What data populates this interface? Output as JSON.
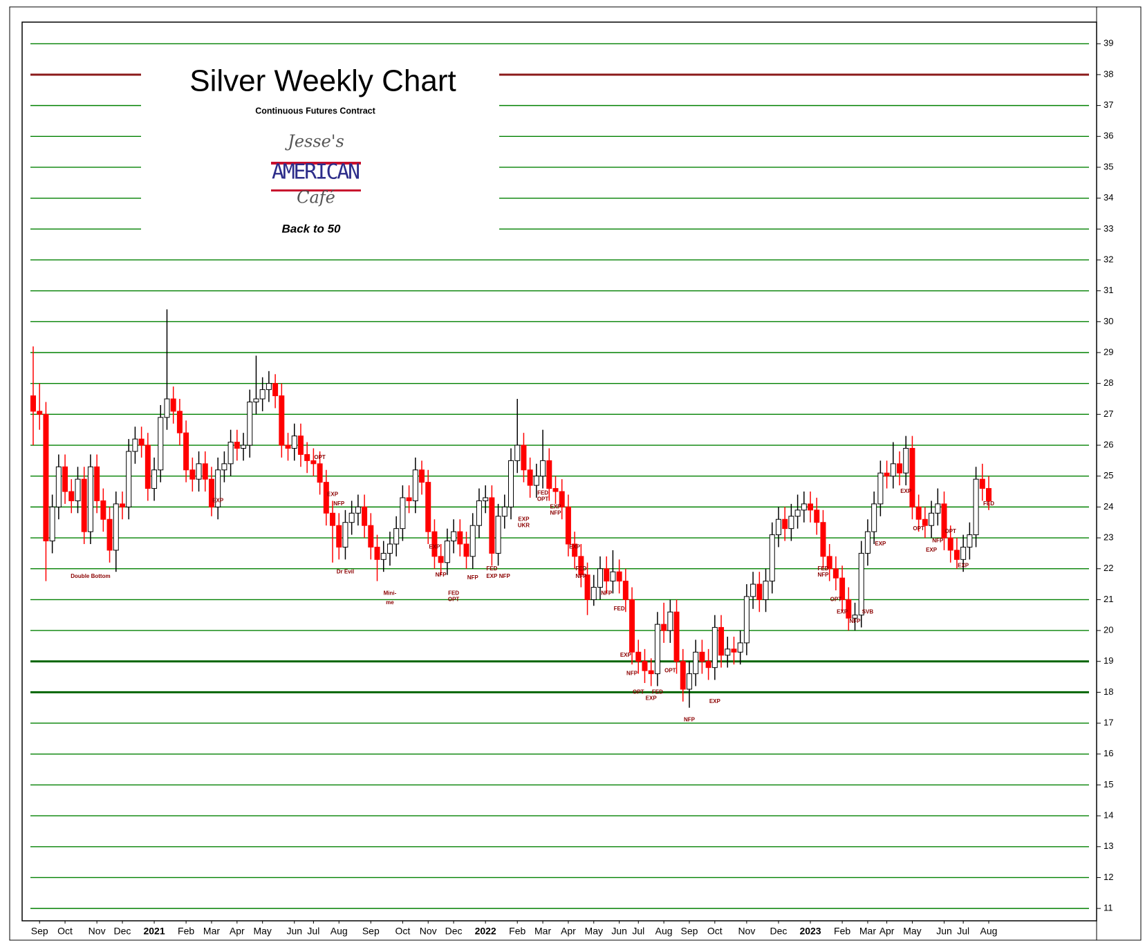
{
  "chart_data": {
    "type": "candlestick",
    "title": "Silver Weekly Chart",
    "subtitle": "Continuous Futures Contract",
    "logo": {
      "top": "Jesse's",
      "middle": "AMERICAN",
      "bottom": "Café"
    },
    "tagline": "Back to 50",
    "up_color": "#ffffff",
    "down_color": "#ff0000",
    "grid": true,
    "grid_color": "#008000",
    "ylim": [
      10.6,
      39.7
    ],
    "yticks": [
      11,
      12,
      13,
      14,
      15,
      16,
      17,
      18,
      19,
      20,
      21,
      22,
      23,
      24,
      25,
      26,
      27,
      28,
      29,
      30,
      31,
      32,
      33,
      34,
      35,
      36,
      37,
      38,
      39
    ],
    "reference_lines": [
      {
        "value": 38,
        "color": "#8b1a1a"
      },
      {
        "value": 19,
        "color": "#006400"
      },
      {
        "value": 18,
        "color": "#006400"
      }
    ],
    "categories": [
      null,
      "Sep",
      null,
      null,
      null,
      "Oct",
      null,
      null,
      null,
      null,
      "Nov",
      null,
      null,
      null,
      "Dec",
      null,
      null,
      null,
      null,
      "2021",
      null,
      null,
      null,
      null,
      "Feb",
      null,
      null,
      null,
      "Mar",
      null,
      null,
      null,
      "Apr",
      null,
      null,
      null,
      "May",
      null,
      null,
      null,
      null,
      "Jun",
      null,
      null,
      "Jul",
      null,
      null,
      null,
      "Aug",
      null,
      null,
      null,
      null,
      "Sep",
      null,
      null,
      null,
      null,
      "Oct",
      null,
      null,
      null,
      "Nov",
      null,
      null,
      null,
      "Dec",
      null,
      null,
      null,
      null,
      "2022",
      null,
      null,
      null,
      null,
      "Feb",
      null,
      null,
      null,
      "Mar",
      null,
      null,
      null,
      "Apr",
      null,
      null,
      null,
      "May",
      null,
      null,
      null,
      "Jun",
      null,
      null,
      "Jul",
      null,
      null,
      null,
      "Aug",
      null,
      null,
      null,
      "Sep",
      null,
      null,
      null,
      "Oct",
      null,
      null,
      null,
      null,
      "Nov",
      null,
      null,
      null,
      null,
      "Dec",
      null,
      null,
      null,
      null,
      "2023",
      null,
      null,
      null,
      null,
      "Feb",
      null,
      null,
      null,
      "Mar",
      null,
      null,
      "Apr",
      null,
      null,
      null,
      "May",
      null,
      null,
      null,
      null,
      "Jun",
      null,
      null,
      "Jul",
      null,
      null,
      null,
      "Aug"
    ],
    "ohlc": [
      [
        27.6,
        29.2,
        26.0,
        27.1
      ],
      [
        27.1,
        28.0,
        26.5,
        27.0
      ],
      [
        27.0,
        27.4,
        21.6,
        22.9
      ],
      [
        22.9,
        24.4,
        22.5,
        24.0
      ],
      [
        24.0,
        25.7,
        23.6,
        25.3
      ],
      [
        25.3,
        25.7,
        24.1,
        24.5
      ],
      [
        24.5,
        24.9,
        23.8,
        24.2
      ],
      [
        24.2,
        25.3,
        23.8,
        24.9
      ],
      [
        24.9,
        25.3,
        22.8,
        23.2
      ],
      [
        23.2,
        25.7,
        22.8,
        25.3
      ],
      [
        25.3,
        25.7,
        23.8,
        24.2
      ],
      [
        24.2,
        24.6,
        23.2,
        23.6
      ],
      [
        23.6,
        24.0,
        22.2,
        22.6
      ],
      [
        22.6,
        24.5,
        21.9,
        24.1
      ],
      [
        24.1,
        24.5,
        23.6,
        24.0
      ],
      [
        24.0,
        26.2,
        23.6,
        25.8
      ],
      [
        25.8,
        26.6,
        25.4,
        26.2
      ],
      [
        26.2,
        26.6,
        25.6,
        26.0
      ],
      [
        26.0,
        26.4,
        24.2,
        24.6
      ],
      [
        24.6,
        25.6,
        24.2,
        25.2
      ],
      [
        25.2,
        27.3,
        24.8,
        26.9
      ],
      [
        26.9,
        30.4,
        26.5,
        27.5
      ],
      [
        27.5,
        27.9,
        26.7,
        27.1
      ],
      [
        27.1,
        27.5,
        26.0,
        26.4
      ],
      [
        26.4,
        26.8,
        24.8,
        25.2
      ],
      [
        25.2,
        25.6,
        24.5,
        24.9
      ],
      [
        24.9,
        25.8,
        24.5,
        25.4
      ],
      [
        25.4,
        25.8,
        24.5,
        24.9
      ],
      [
        24.9,
        25.3,
        23.7,
        24.0
      ],
      [
        24.0,
        25.6,
        23.6,
        25.2
      ],
      [
        25.2,
        25.8,
        24.8,
        25.4
      ],
      [
        25.4,
        26.5,
        25.0,
        26.1
      ],
      [
        26.1,
        26.5,
        25.5,
        25.9
      ],
      [
        25.9,
        26.4,
        25.5,
        26.0
      ],
      [
        26.0,
        27.8,
        25.6,
        27.4
      ],
      [
        27.4,
        28.9,
        27.0,
        27.5
      ],
      [
        27.5,
        28.2,
        27.1,
        27.8
      ],
      [
        27.8,
        28.4,
        27.4,
        28.0
      ],
      [
        28.0,
        28.3,
        27.2,
        27.6
      ],
      [
        27.6,
        28.0,
        25.6,
        26.0
      ],
      [
        26.0,
        26.4,
        25.5,
        25.9
      ],
      [
        25.9,
        26.7,
        25.5,
        26.3
      ],
      [
        26.3,
        26.7,
        25.3,
        25.7
      ],
      [
        25.7,
        26.1,
        25.1,
        25.5
      ],
      [
        25.5,
        25.9,
        25.0,
        25.4
      ],
      [
        25.4,
        25.8,
        24.4,
        24.8
      ],
      [
        24.8,
        25.2,
        23.4,
        23.8
      ],
      [
        23.8,
        24.2,
        22.2,
        23.4
      ],
      [
        23.4,
        23.8,
        22.3,
        22.7
      ],
      [
        22.7,
        23.9,
        22.3,
        23.5
      ],
      [
        23.5,
        24.2,
        23.1,
        23.8
      ],
      [
        23.8,
        24.4,
        23.4,
        24.0
      ],
      [
        24.0,
        24.4,
        23.0,
        23.4
      ],
      [
        23.4,
        23.8,
        22.3,
        22.7
      ],
      [
        22.7,
        23.1,
        21.6,
        22.3
      ],
      [
        22.3,
        22.9,
        21.9,
        22.5
      ],
      [
        22.5,
        23.2,
        22.1,
        22.8
      ],
      [
        22.8,
        23.7,
        22.4,
        23.3
      ],
      [
        23.3,
        24.7,
        22.9,
        24.3
      ],
      [
        24.3,
        24.7,
        23.8,
        24.2
      ],
      [
        24.2,
        25.6,
        23.8,
        25.2
      ],
      [
        25.2,
        25.5,
        24.4,
        24.8
      ],
      [
        24.8,
        25.2,
        22.8,
        23.2
      ],
      [
        23.2,
        23.6,
        22.0,
        22.4
      ],
      [
        22.4,
        22.8,
        21.8,
        22.2
      ],
      [
        22.2,
        23.3,
        21.8,
        22.9
      ],
      [
        22.9,
        23.6,
        22.5,
        23.2
      ],
      [
        23.2,
        23.6,
        22.4,
        22.8
      ],
      [
        22.8,
        23.2,
        22.0,
        22.4
      ],
      [
        22.4,
        23.8,
        22.0,
        23.4
      ],
      [
        23.4,
        24.6,
        23.0,
        24.2
      ],
      [
        24.2,
        24.7,
        23.8,
        24.3
      ],
      [
        24.3,
        24.7,
        22.1,
        22.5
      ],
      [
        22.5,
        24.1,
        22.1,
        23.7
      ],
      [
        23.7,
        24.4,
        23.3,
        24.0
      ],
      [
        24.0,
        25.9,
        23.6,
        25.5
      ],
      [
        25.5,
        27.5,
        25.1,
        26.0
      ],
      [
        26.0,
        26.4,
        24.8,
        25.2
      ],
      [
        25.2,
        25.6,
        24.3,
        24.7
      ],
      [
        24.7,
        25.4,
        24.3,
        25.0
      ],
      [
        25.0,
        26.5,
        24.6,
        25.5
      ],
      [
        25.5,
        25.9,
        24.2,
        24.6
      ],
      [
        24.6,
        25.0,
        24.1,
        24.5
      ],
      [
        24.5,
        24.9,
        23.6,
        24.0
      ],
      [
        24.0,
        24.4,
        22.4,
        22.8
      ],
      [
        22.8,
        23.2,
        22.0,
        22.4
      ],
      [
        22.4,
        22.8,
        21.4,
        21.8
      ],
      [
        21.8,
        22.2,
        20.5,
        21.0
      ],
      [
        21.0,
        21.8,
        20.8,
        21.4
      ],
      [
        21.4,
        22.4,
        21.0,
        22.0
      ],
      [
        22.0,
        22.4,
        21.2,
        21.6
      ],
      [
        21.6,
        22.6,
        21.2,
        21.9
      ],
      [
        21.9,
        22.3,
        21.2,
        21.6
      ],
      [
        21.6,
        22.0,
        20.6,
        21.0
      ],
      [
        21.0,
        21.4,
        18.9,
        19.3
      ],
      [
        19.3,
        19.7,
        18.6,
        19.0
      ],
      [
        19.0,
        19.4,
        18.3,
        18.7
      ],
      [
        18.7,
        19.1,
        18.2,
        18.6
      ],
      [
        18.6,
        20.6,
        18.2,
        20.2
      ],
      [
        20.2,
        20.9,
        19.6,
        20.0
      ],
      [
        20.0,
        21.0,
        19.6,
        20.6
      ],
      [
        20.6,
        21.0,
        18.6,
        19.0
      ],
      [
        19.0,
        19.4,
        17.7,
        18.1
      ],
      [
        18.1,
        19.0,
        17.5,
        18.6
      ],
      [
        18.6,
        19.7,
        18.2,
        19.3
      ],
      [
        19.3,
        19.7,
        18.6,
        19.0
      ],
      [
        19.0,
        19.4,
        18.4,
        18.8
      ],
      [
        18.8,
        20.5,
        18.4,
        20.1
      ],
      [
        20.1,
        20.5,
        18.8,
        19.2
      ],
      [
        19.2,
        19.8,
        18.8,
        19.4
      ],
      [
        19.4,
        19.8,
        18.9,
        19.3
      ],
      [
        19.3,
        20.0,
        18.9,
        19.6
      ],
      [
        19.6,
        21.5,
        19.2,
        21.1
      ],
      [
        21.1,
        21.9,
        20.7,
        21.5
      ],
      [
        21.5,
        21.9,
        20.6,
        21.0
      ],
      [
        21.0,
        22.0,
        20.6,
        21.6
      ],
      [
        21.6,
        23.5,
        21.2,
        23.1
      ],
      [
        23.1,
        24.0,
        22.7,
        23.6
      ],
      [
        23.6,
        24.0,
        22.9,
        23.3
      ],
      [
        23.3,
        24.1,
        22.9,
        23.7
      ],
      [
        23.7,
        24.4,
        23.3,
        23.9
      ],
      [
        23.9,
        24.5,
        23.5,
        24.1
      ],
      [
        24.1,
        24.5,
        23.5,
        23.9
      ],
      [
        23.9,
        24.3,
        23.1,
        23.5
      ],
      [
        23.5,
        23.9,
        22.0,
        22.4
      ],
      [
        22.4,
        22.8,
        21.6,
        22.0
      ],
      [
        22.0,
        22.4,
        21.3,
        21.7
      ],
      [
        21.7,
        22.1,
        20.6,
        21.0
      ],
      [
        21.0,
        21.4,
        20.0,
        20.4
      ],
      [
        20.4,
        20.9,
        20.0,
        20.5
      ],
      [
        20.5,
        22.9,
        20.1,
        22.5
      ],
      [
        22.5,
        23.6,
        22.1,
        23.2
      ],
      [
        23.2,
        24.5,
        22.8,
        24.1
      ],
      [
        24.1,
        25.5,
        23.7,
        25.1
      ],
      [
        25.1,
        25.5,
        24.6,
        25.0
      ],
      [
        25.0,
        26.1,
        24.6,
        25.4
      ],
      [
        25.4,
        25.8,
        24.7,
        25.1
      ],
      [
        25.1,
        26.3,
        24.7,
        25.9
      ],
      [
        25.9,
        26.3,
        23.6,
        24.0
      ],
      [
        24.0,
        24.4,
        23.2,
        23.6
      ],
      [
        23.6,
        24.0,
        23.0,
        23.4
      ],
      [
        23.4,
        24.2,
        23.0,
        23.8
      ],
      [
        23.8,
        24.6,
        23.4,
        24.1
      ],
      [
        24.1,
        24.5,
        22.6,
        23.0
      ],
      [
        23.0,
        23.4,
        22.2,
        22.6
      ],
      [
        22.6,
        23.0,
        22.0,
        22.3
      ],
      [
        22.3,
        23.1,
        21.9,
        22.7
      ],
      [
        22.7,
        23.5,
        22.3,
        23.1
      ],
      [
        23.1,
        25.3,
        22.7,
        24.9
      ],
      [
        24.9,
        25.4,
        24.2,
        24.6
      ],
      [
        24.6,
        25.0,
        23.9,
        24.2
      ]
    ],
    "annotations": [
      {
        "text": "Double Bottom",
        "x": 9,
        "y": 21.75
      },
      {
        "text": "EXP",
        "x": 29,
        "y": 24.2
      },
      {
        "text": "OPT",
        "x": 45,
        "y": 25.6
      },
      {
        "text": "EXP",
        "x": 47,
        "y": 24.4
      },
      {
        "text": "NFP",
        "x": 48,
        "y": 24.1
      },
      {
        "text": "Dr Evil",
        "x": 49,
        "y": 21.9
      },
      {
        "text": "Mini-",
        "x": 56,
        "y": 21.2
      },
      {
        "text": "me",
        "x": 56,
        "y": 20.9
      },
      {
        "text": "EXP",
        "x": 63,
        "y": 22.7
      },
      {
        "text": "NFP",
        "x": 64,
        "y": 21.8
      },
      {
        "text": "FED",
        "x": 66,
        "y": 21.2
      },
      {
        "text": "OPT",
        "x": 66,
        "y": 21.0
      },
      {
        "text": "NFP",
        "x": 69,
        "y": 21.7
      },
      {
        "text": "FED",
        "x": 72,
        "y": 22.0
      },
      {
        "text": "EXP",
        "x": 72,
        "y": 21.75
      },
      {
        "text": "NFP",
        "x": 74,
        "y": 21.75
      },
      {
        "text": "EXP",
        "x": 77,
        "y": 23.6
      },
      {
        "text": "UKR",
        "x": 77,
        "y": 23.4
      },
      {
        "text": "FED",
        "x": 80,
        "y": 24.45
      },
      {
        "text": "OPT",
        "x": 80,
        "y": 24.25
      },
      {
        "text": "EXP",
        "x": 82,
        "y": 24.0
      },
      {
        "text": "NFP",
        "x": 82,
        "y": 23.8
      },
      {
        "text": "EXP",
        "x": 85,
        "y": 22.7
      },
      {
        "text": "FED",
        "x": 86,
        "y": 22.0
      },
      {
        "text": "NFP",
        "x": 86,
        "y": 21.75
      },
      {
        "text": "NFP",
        "x": 90,
        "y": 21.2
      },
      {
        "text": "FED",
        "x": 92,
        "y": 20.7
      },
      {
        "text": "EXP",
        "x": 93,
        "y": 19.2
      },
      {
        "text": "NFP",
        "x": 94,
        "y": 18.6
      },
      {
        "text": "OPT",
        "x": 95,
        "y": 18.0
      },
      {
        "text": "EXP",
        "x": 97,
        "y": 17.8
      },
      {
        "text": "FED",
        "x": 98,
        "y": 18.0
      },
      {
        "text": "OPT",
        "x": 100,
        "y": 18.7
      },
      {
        "text": "NFP",
        "x": 103,
        "y": 17.1
      },
      {
        "text": "EXP",
        "x": 107,
        "y": 17.7
      },
      {
        "text": "FED",
        "x": 124,
        "y": 22.0
      },
      {
        "text": "NFP",
        "x": 124,
        "y": 21.8
      },
      {
        "text": "OPT",
        "x": 126,
        "y": 21.0
      },
      {
        "text": "EXP",
        "x": 127,
        "y": 20.6
      },
      {
        "text": "NFP",
        "x": 129,
        "y": 20.3
      },
      {
        "text": "SVB",
        "x": 131,
        "y": 20.6
      },
      {
        "text": "EXP",
        "x": 133,
        "y": 22.8
      },
      {
        "text": "EXP",
        "x": 137,
        "y": 24.5
      },
      {
        "text": "OPT",
        "x": 139,
        "y": 23.3
      },
      {
        "text": "EXP",
        "x": 141,
        "y": 22.6
      },
      {
        "text": "NFP",
        "x": 142,
        "y": 22.9
      },
      {
        "text": "OPT",
        "x": 144,
        "y": 23.2
      },
      {
        "text": "EXP",
        "x": 146,
        "y": 22.1
      },
      {
        "text": "FED",
        "x": 150,
        "y": 24.1
      }
    ]
  }
}
